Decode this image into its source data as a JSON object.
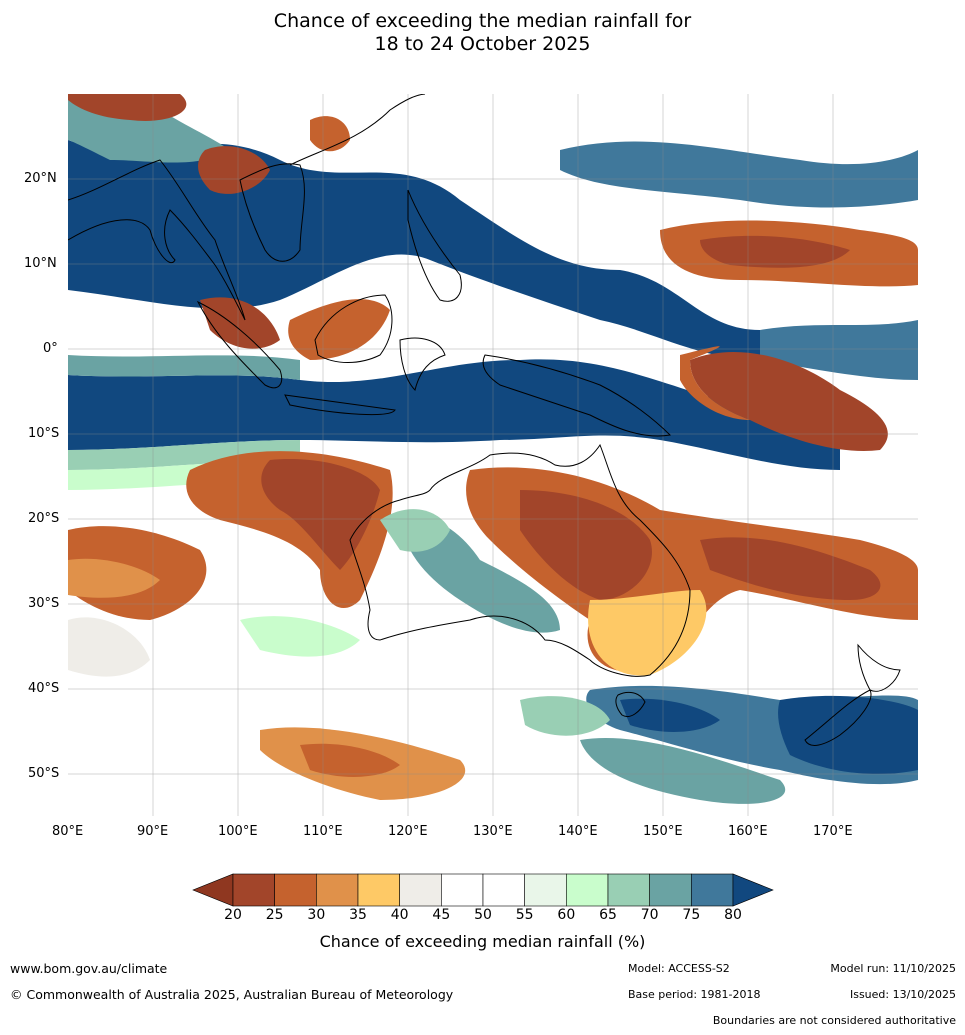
{
  "title_line1": "Chance of exceeding the median rainfall for",
  "title_line2": "18 to 24 October 2025",
  "map": {
    "lat_labels": [
      "20°N",
      "10°N",
      "0°",
      "10°S",
      "20°S",
      "30°S",
      "40°S",
      "50°S"
    ],
    "lon_labels": [
      "80°E",
      "90°E",
      "100°E",
      "110°E",
      "120°E",
      "130°E",
      "140°E",
      "150°E",
      "160°E",
      "170°E"
    ]
  },
  "colorbar": {
    "ticks": [
      "20",
      "25",
      "30",
      "35",
      "40",
      "45",
      "50",
      "55",
      "60",
      "65",
      "70",
      "75",
      "80"
    ],
    "colors": [
      "#a2452a",
      "#c5622e",
      "#e0914a",
      "#fec966",
      "#efede8",
      "#ffffff",
      "#ffffff",
      "#e9f6e9",
      "#c9fdcc",
      "#99cfb4",
      "#6aa3a3",
      "#40789b"
    ],
    "under_color": "#8f3720",
    "over_color": "#11487f",
    "label": "Chance of exceeding median rainfall (%)"
  },
  "footer": {
    "url": "www.bom.gov.au/climate",
    "copyright": "© Commonwealth of Australia 2025, Australian Bureau of Meteorology",
    "model": "Model: ACCESS-S2",
    "model_run": "Model run: 11/10/2025",
    "base_period": "Base period: 1981-2018",
    "issued": "Issued: 13/10/2025",
    "disclaimer": "Boundaries are not considered authoritative"
  }
}
